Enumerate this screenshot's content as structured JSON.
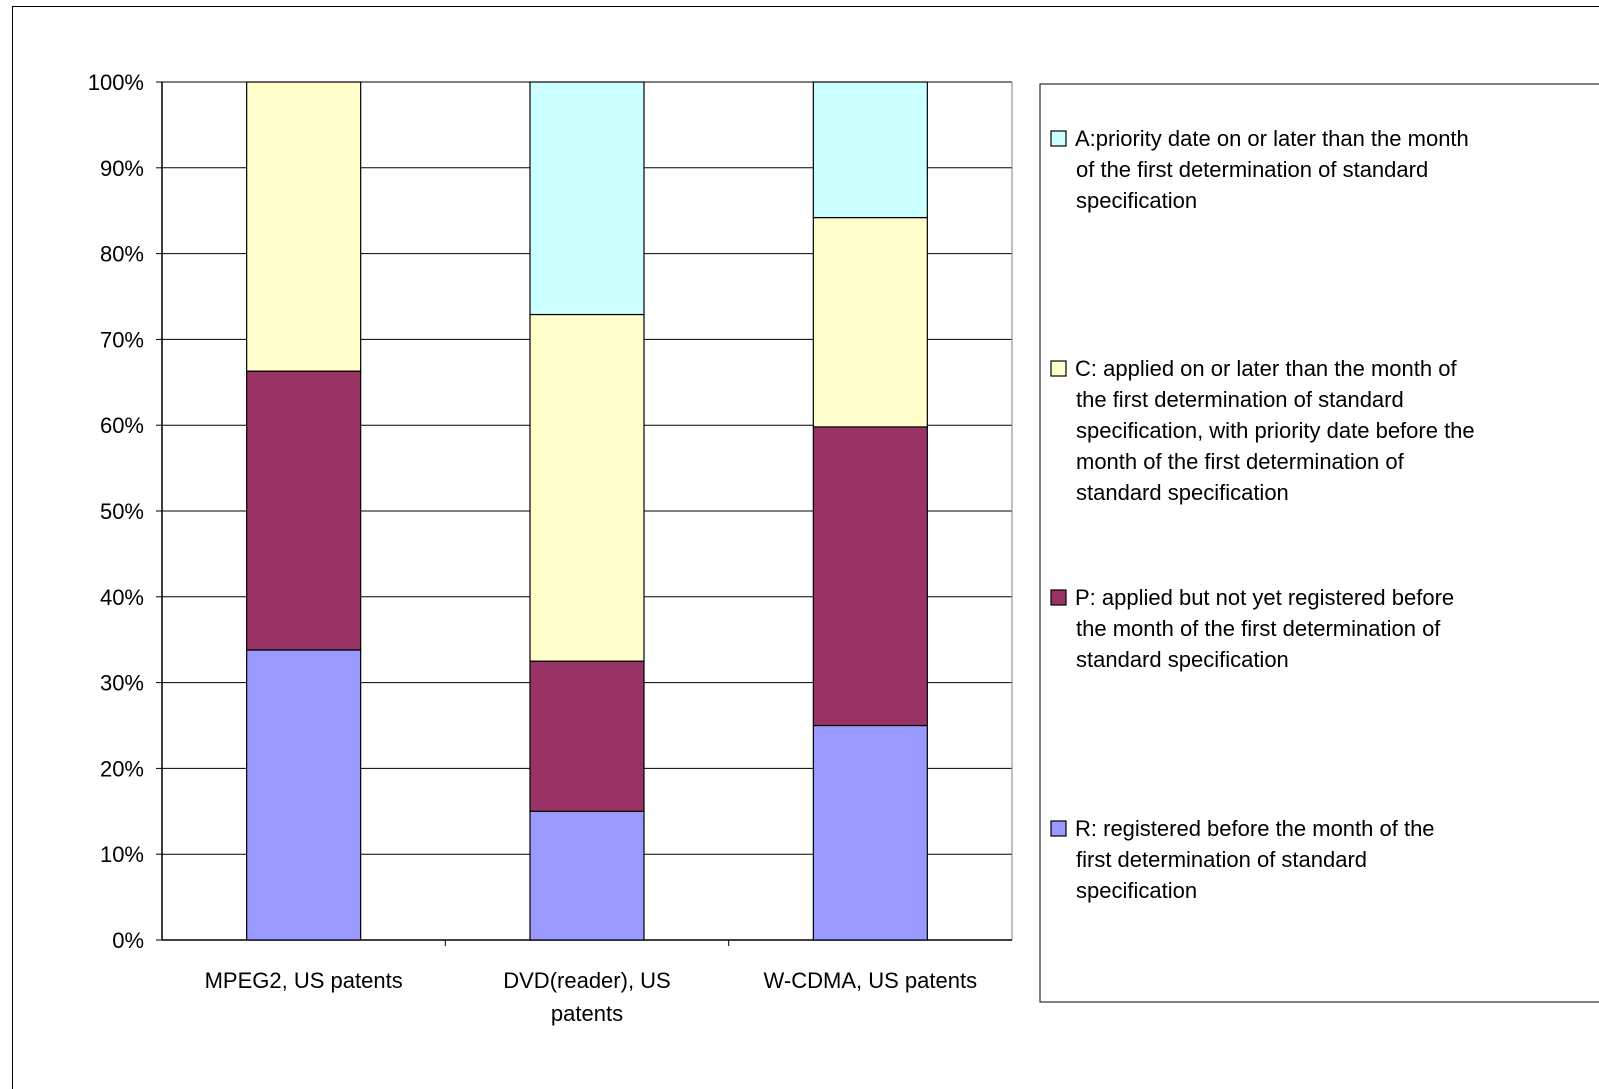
{
  "chart_data": {
    "type": "bar",
    "stacked": true,
    "percent": true,
    "categories": [
      [
        "MPEG2, US patents"
      ],
      [
        "DVD(reader), US",
        "patents"
      ],
      [
        "W-CDMA, US patents"
      ]
    ],
    "series": [
      {
        "name": [
          "R: registered before the month of the",
          "first determination of standard",
          "specification"
        ],
        "color": "#9999ff",
        "values": [
          33.8,
          15.0,
          25.0
        ]
      },
      {
        "name": [
          "P: applied but not yet registered before",
          "the month of the first determination of",
          "standard specification"
        ],
        "color": "#993366",
        "values": [
          32.5,
          17.5,
          34.8
        ]
      },
      {
        "name": [
          "C: applied on or later than the month of",
          "the first determination of standard",
          "specification, with priority date before the",
          "month of the first determination of",
          "standard specification"
        ],
        "color": "#ffffcc",
        "values": [
          33.7,
          40.4,
          24.4
        ]
      },
      {
        "name": [
          "A:priority date on or later than the month",
          "of the first determination of standard",
          "specification"
        ],
        "color": "#ccffff",
        "values": [
          0,
          27.1,
          15.8
        ]
      }
    ],
    "yticks": [
      "0%",
      "10%",
      "20%",
      "30%",
      "40%",
      "50%",
      "60%",
      "70%",
      "80%",
      "90%",
      "100%"
    ],
    "ylim": [
      0,
      100
    ],
    "grid": true,
    "legend_position": "right"
  }
}
